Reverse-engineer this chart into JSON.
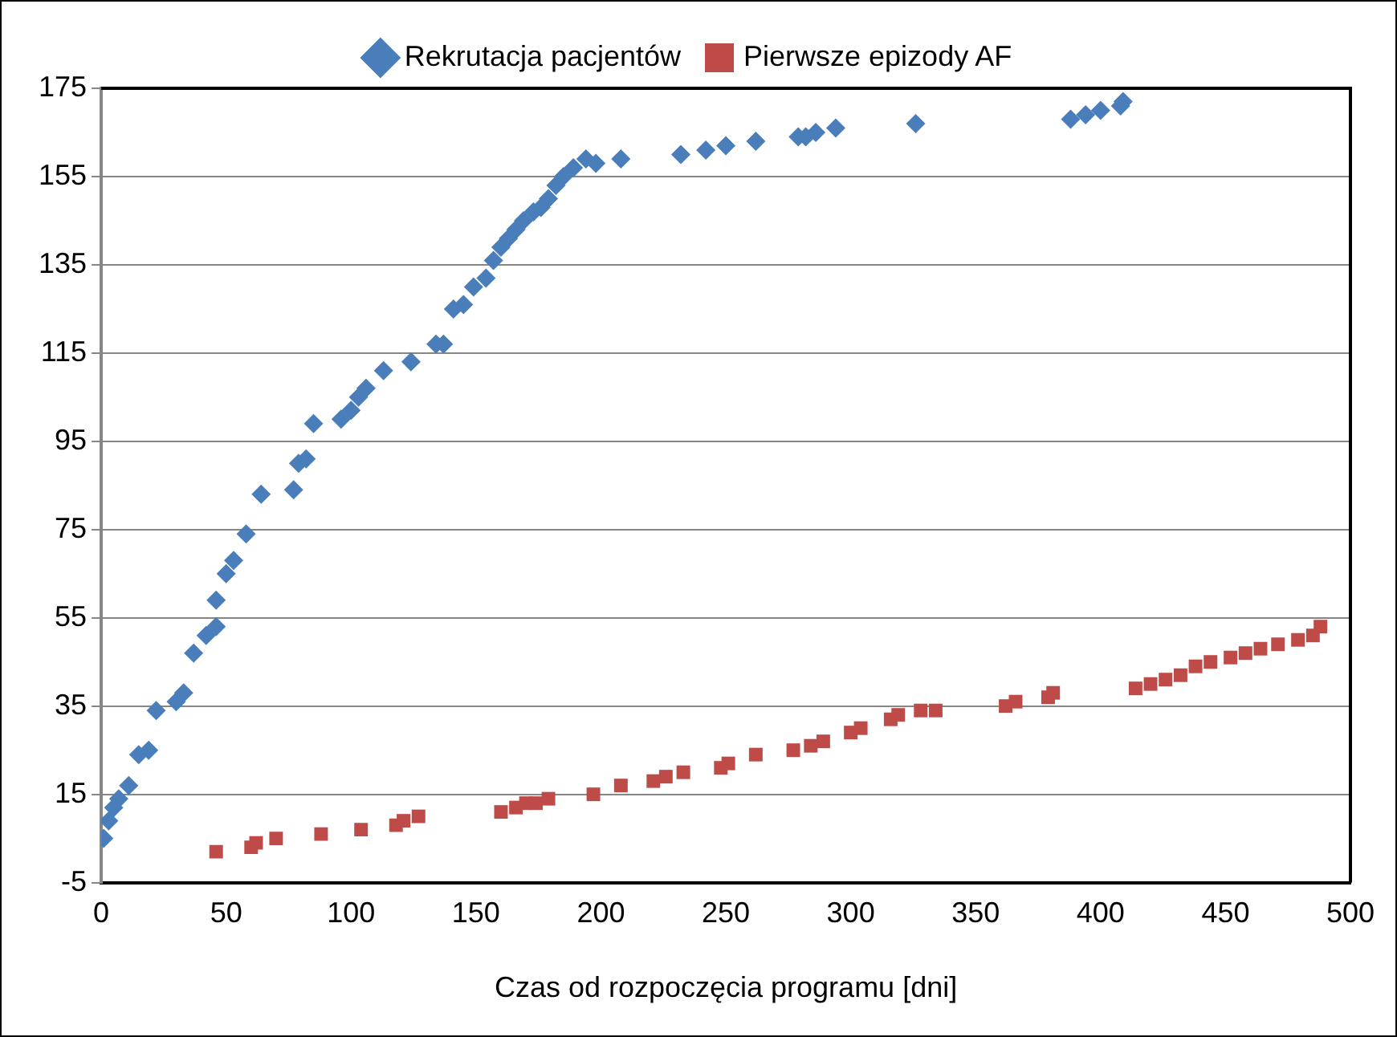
{
  "chart_data": {
    "type": "scatter",
    "xlabel": "Czas od rozpoczęcia programu [dni]",
    "xlim": [
      0,
      500
    ],
    "xticks": [
      0,
      50,
      100,
      150,
      200,
      250,
      300,
      350,
      400,
      450,
      500
    ],
    "ylim": [
      -5,
      175
    ],
    "yticks": [
      -5,
      15,
      35,
      55,
      75,
      95,
      115,
      135,
      155,
      175
    ],
    "grid": "y",
    "legend": "top",
    "series": [
      {
        "name": "Rekrutacja pacjentów",
        "color": "#4a7ebb",
        "marker": "diamond",
        "x": [
          1,
          3,
          5,
          7,
          11,
          15,
          19,
          22,
          30,
          33,
          37,
          42,
          46,
          46,
          50,
          53,
          58,
          64,
          77,
          79,
          82,
          85,
          96,
          100,
          103,
          106,
          113,
          124,
          134,
          137,
          141,
          145,
          149,
          154,
          157,
          160,
          163,
          166,
          169,
          173,
          176,
          179,
          182,
          185,
          189,
          194,
          198,
          208,
          232,
          242,
          250,
          262,
          279,
          282,
          286,
          294,
          326,
          388,
          394,
          400,
          408,
          409
        ],
        "values": [
          5,
          9,
          12,
          14,
          17,
          24,
          25,
          34,
          36,
          38,
          47,
          51,
          53,
          59,
          65,
          68,
          74,
          83,
          84,
          90,
          91,
          99,
          100,
          102,
          105,
          107,
          111,
          113,
          117,
          117,
          125,
          126,
          130,
          132,
          136,
          139,
          141,
          143,
          145,
          147,
          148,
          150,
          153,
          155,
          157,
          159,
          158,
          159,
          160,
          161,
          162,
          163,
          164,
          164,
          165,
          166,
          167,
          168,
          169,
          170,
          171,
          172
        ]
      },
      {
        "name": "Pierwsze epizody AF",
        "color": "#be4b48",
        "marker": "square",
        "x": [
          46,
          60,
          62,
          70,
          88,
          104,
          118,
          121,
          127,
          160,
          166,
          170,
          174,
          179,
          197,
          208,
          221,
          226,
          233,
          248,
          251,
          262,
          277,
          284,
          289,
          300,
          304,
          316,
          319,
          328,
          334,
          362,
          366,
          379,
          381,
          414,
          420,
          426,
          432,
          438,
          444,
          452,
          458,
          464,
          471,
          479,
          485,
          488
        ],
        "values": [
          2,
          3,
          4,
          5,
          6,
          7,
          8,
          9,
          10,
          11,
          12,
          13,
          13,
          14,
          15,
          17,
          18,
          19,
          20,
          21,
          22,
          24,
          25,
          26,
          27,
          29,
          30,
          32,
          33,
          34,
          34,
          35,
          36,
          37,
          38,
          39,
          40,
          41,
          42,
          44,
          45,
          46,
          47,
          48,
          49,
          50,
          51,
          53
        ]
      }
    ]
  }
}
